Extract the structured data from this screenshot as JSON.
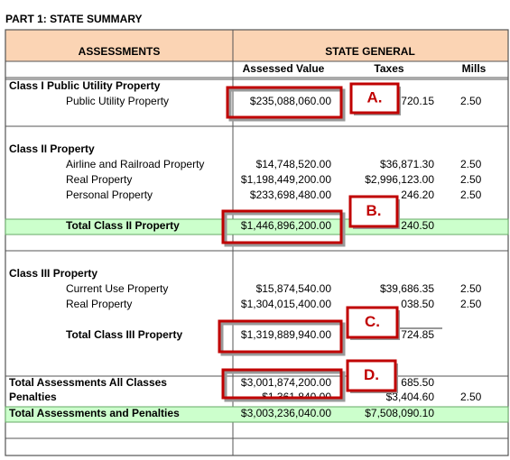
{
  "title": "PART 1: STATE SUMMARY",
  "header": {
    "assessments": "ASSESSMENTS",
    "state_general": "STATE GENERAL",
    "assessed_value": "Assessed Value",
    "taxes": "Taxes",
    "mills": "Mills"
  },
  "rows": [
    {
      "label": "Class I Public Utility Property"
    },
    {
      "label": "Public Utility Property",
      "assessed": "$235,088,060.00",
      "taxes": "720.15",
      "mills": "2.50"
    },
    {
      "label": "Class II Property"
    },
    {
      "label": "Airline and Railroad Property",
      "assessed": "$14,748,520.00",
      "taxes": "$36,871.30",
      "mills": "2.50"
    },
    {
      "label": "Real Property",
      "assessed": "$1,198,449,200.00",
      "taxes": "$2,996,123.00",
      "mills": "2.50"
    },
    {
      "label": "Personal Property",
      "assessed": "$233,698,480.00",
      "taxes": "246.20",
      "mills": "2.50"
    },
    {
      "label": "Total Class II Property",
      "assessed": "$1,446,896,200.00",
      "taxes": "240.50"
    },
    {
      "label": "Class III Property"
    },
    {
      "label": "Current Use Property",
      "assessed": "$15,874,540.00",
      "taxes": "$39,686.35",
      "mills": "2.50"
    },
    {
      "label": "Real Property",
      "assessed": "$1,304,015,400.00",
      "taxes": "038.50",
      "mills": "2.50"
    },
    {
      "label": "Total Class III Property",
      "assessed": "$1,319,889,940.00",
      "taxes": "724.85"
    },
    {
      "label": "Total Assessments All Classes",
      "assessed": "$3,001,874,200.00",
      "taxes": "685.50"
    },
    {
      "label": "Penalties",
      "assessed": "$1,361,840.00",
      "taxes": "$3,404.60",
      "mills": "2.50"
    },
    {
      "label": "Total Assessments and Penalties",
      "assessed": "$3,003,236,040.00",
      "taxes": "$7,508,090.10"
    }
  ],
  "callouts": [
    "A.",
    "B.",
    "C.",
    "D."
  ]
}
